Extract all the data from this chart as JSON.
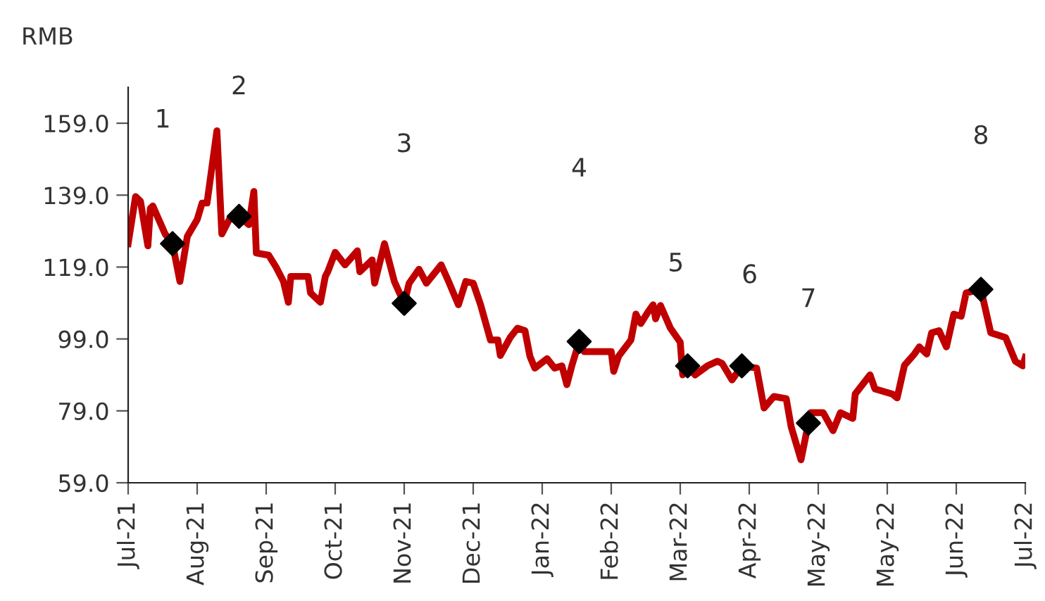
{
  "chart_data": {
    "type": "line",
    "ylabel": "RMB",
    "xlim": [
      "2021-07-27",
      "2022-07-26"
    ],
    "ylim": [
      59,
      169
    ],
    "xticks": [
      {
        "value": "2021-07-27",
        "label": "Jul-21"
      },
      {
        "value": "2021-08-24",
        "label": "Aug-21"
      },
      {
        "value": "2021-09-21",
        "label": "Sep-21"
      },
      {
        "value": "2021-10-19",
        "label": "Oct-21"
      },
      {
        "value": "2021-11-16",
        "label": "Nov-21"
      },
      {
        "value": "2021-12-14",
        "label": "Dec-21"
      },
      {
        "value": "2022-01-11",
        "label": "Jan-22"
      },
      {
        "value": "2022-02-08",
        "label": "Feb-22"
      },
      {
        "value": "2022-03-08",
        "label": "Mar-22"
      },
      {
        "value": "2022-04-05",
        "label": "Apr-22"
      },
      {
        "value": "2022-05-03",
        "label": "May-22"
      },
      {
        "value": "2022-05-31",
        "label": "May-22"
      },
      {
        "value": "2022-06-28",
        "label": "Jun-22"
      },
      {
        "value": "2022-07-26",
        "label": "Jul-22"
      }
    ],
    "yticks": [
      {
        "value": 59,
        "label": "59.0"
      },
      {
        "value": 79,
        "label": "79.0"
      },
      {
        "value": 99,
        "label": "99.0"
      },
      {
        "value": 119,
        "label": "119.0"
      },
      {
        "value": 139,
        "label": "139.0"
      },
      {
        "value": 159,
        "label": "159.0"
      }
    ],
    "grid": false,
    "series": [
      {
        "color": "#c00000",
        "marker": "none",
        "line_style": "solid",
        "x": [
          "2021-07-27",
          "2021-07-30",
          "2021-08-01",
          "2021-08-04",
          "2021-08-05",
          "2021-08-06",
          "2021-08-11",
          "2021-08-14",
          "2021-08-17",
          "2021-08-20",
          "2021-08-24",
          "2021-08-26",
          "2021-08-28",
          "2021-09-01",
          "2021-09-02",
          "2021-09-03",
          "2021-09-06",
          "2021-09-10",
          "2021-09-14",
          "2021-09-16",
          "2021-09-17",
          "2021-09-22",
          "2021-09-25",
          "2021-09-28",
          "2021-09-30",
          "2021-10-01",
          "2021-10-08",
          "2021-10-09",
          "2021-10-13",
          "2021-10-15",
          "2021-10-16",
          "2021-10-19",
          "2021-10-23",
          "2021-10-28",
          "2021-10-29",
          "2021-11-03",
          "2021-11-04",
          "2021-11-08",
          "2021-11-12",
          "2021-11-16",
          "2021-11-18",
          "2021-11-22",
          "2021-11-25",
          "2021-12-01",
          "2021-12-04",
          "2021-12-08",
          "2021-12-11",
          "2021-12-14",
          "2021-12-17",
          "2021-12-21",
          "2021-12-24",
          "2021-12-25",
          "2021-12-29",
          "2022-01-01",
          "2022-01-04",
          "2022-01-06",
          "2022-01-08",
          "2022-01-13",
          "2022-01-16",
          "2022-01-19",
          "2022-01-21",
          "2022-01-23",
          "2022-01-26",
          "2022-01-28",
          "2022-02-08",
          "2022-02-09",
          "2022-02-11",
          "2022-02-16",
          "2022-02-18",
          "2022-02-20",
          "2022-02-23",
          "2022-02-25",
          "2022-02-26",
          "2022-02-28",
          "2022-03-04",
          "2022-03-08",
          "2022-03-09",
          "2022-03-11",
          "2022-03-14",
          "2022-03-19",
          "2022-03-23",
          "2022-03-25",
          "2022-03-29",
          "2022-04-02",
          "2022-04-08",
          "2022-04-11",
          "2022-04-15",
          "2022-04-20",
          "2022-04-22",
          "2022-04-26",
          "2022-04-29",
          "2022-04-30",
          "2022-05-05",
          "2022-05-09",
          "2022-05-12",
          "2022-05-17",
          "2022-05-18",
          "2022-05-24",
          "2022-05-26",
          "2022-06-02",
          "2022-06-04",
          "2022-06-07",
          "2022-06-11",
          "2022-06-13",
          "2022-06-16",
          "2022-06-18",
          "2022-06-21",
          "2022-06-24",
          "2022-06-27",
          "2022-06-30",
          "2022-07-02",
          "2022-07-08",
          "2022-07-12",
          "2022-07-18",
          "2022-07-22",
          "2022-07-25",
          "2022-07-26"
        ],
        "values": [
          125.5,
          138.6,
          137.3,
          124.9,
          135.3,
          136.0,
          128.2,
          125.5,
          115.0,
          127.5,
          132.2,
          136.8,
          136.8,
          156.9,
          142.6,
          128.2,
          132.2,
          133.1,
          130.8,
          140.0,
          122.9,
          122.3,
          119.0,
          115.0,
          109.2,
          116.4,
          116.4,
          111.8,
          109.2,
          116.4,
          117.7,
          123.1,
          119.6,
          123.5,
          117.7,
          121.0,
          114.5,
          125.5,
          115.0,
          108.9,
          114.5,
          118.4,
          114.5,
          119.6,
          115.0,
          108.5,
          115.0,
          114.5,
          108.5,
          98.7,
          98.7,
          94.4,
          99.4,
          102.0,
          101.3,
          94.2,
          90.9,
          93.5,
          90.9,
          91.5,
          86.3,
          91.5,
          98.3,
          95.5,
          95.5,
          90.0,
          94.2,
          98.7,
          105.9,
          103.3,
          106.6,
          108.5,
          104.6,
          108.3,
          102.0,
          98.1,
          89.0,
          91.5,
          89.0,
          91.5,
          92.8,
          92.2,
          87.6,
          91.5,
          90.9,
          79.8,
          83.0,
          82.4,
          74.6,
          65.4,
          75.6,
          78.5,
          78.5,
          73.5,
          78.5,
          76.9,
          83.7,
          89.0,
          85.1,
          83.7,
          82.6,
          91.7,
          94.8,
          96.8,
          94.8,
          100.7,
          101.3,
          96.8,
          105.9,
          105.3,
          111.8,
          112.8,
          100.7,
          99.4,
          92.8,
          91.5,
          93.9
        ]
      },
      {
        "type": "scatter",
        "color": "#000000",
        "marker": "diamond",
        "x": [
          "2021-08-14",
          "2021-09-10",
          "2021-11-16",
          "2022-01-26",
          "2022-03-11",
          "2022-04-02",
          "2022-04-29",
          "2022-07-08"
        ],
        "values": [
          125.5,
          133.1,
          108.9,
          98.3,
          91.5,
          91.5,
          75.6,
          112.8
        ]
      }
    ],
    "annotations": [
      "1",
      "2",
      "3",
      "4",
      "5",
      "6",
      "7",
      "8"
    ]
  }
}
